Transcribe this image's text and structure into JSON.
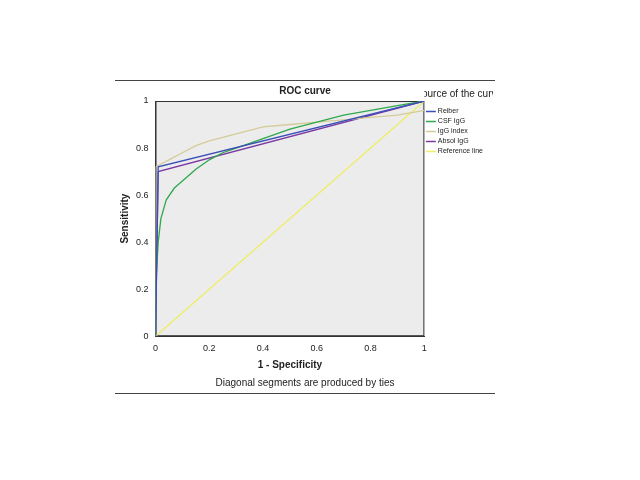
{
  "chart_data": {
    "type": "line",
    "title": "ROC curve",
    "xlabel": "1 - Specificity",
    "ylabel": "Sensitivity",
    "annotation": "Diagonal segments are produced by ties",
    "legend": "right",
    "legend_title": "Source of the curve",
    "grid": false,
    "xlim": [
      0,
      1
    ],
    "ylim": [
      0,
      1
    ],
    "xticks": [
      0,
      0.2,
      0.4,
      0.6,
      0.8,
      1
    ],
    "yticks": [
      0,
      0.2,
      0.4,
      0.6,
      0.8,
      1
    ],
    "series": [
      {
        "name": "Reiber",
        "color": "#3b4fb8",
        "x": [
          0,
          0.01,
          1
        ],
        "values": [
          0,
          0.72,
          1
        ]
      },
      {
        "name": "CSF IgG",
        "color": "#2ea84c",
        "x": [
          0,
          0,
          0.005,
          0.01,
          0.02,
          0.04,
          0.07,
          0.1,
          0.15,
          0.2,
          0.25,
          0.3,
          0.4,
          0.5,
          0.6,
          0.7,
          0.8,
          0.9,
          1
        ],
        "values": [
          0,
          0.2,
          0.3,
          0.4,
          0.5,
          0.58,
          0.63,
          0.66,
          0.71,
          0.75,
          0.78,
          0.8,
          0.84,
          0.88,
          0.91,
          0.94,
          0.96,
          0.98,
          1
        ]
      },
      {
        "name": "IgG index",
        "color": "#d4cc98",
        "x": [
          0,
          0,
          0.05,
          0.1,
          0.15,
          0.2,
          0.3,
          0.4,
          0.5,
          0.6,
          0.7,
          0.8,
          0.9,
          1
        ],
        "values": [
          0,
          0.72,
          0.75,
          0.78,
          0.81,
          0.83,
          0.86,
          0.89,
          0.9,
          0.91,
          0.92,
          0.93,
          0.94,
          0.96
        ]
      },
      {
        "name": "Absol IgG",
        "color": "#7b3aa3",
        "x": [
          0,
          0.01,
          1
        ],
        "values": [
          0,
          0.7,
          1
        ]
      },
      {
        "name": "Reference line",
        "color": "#eeee66",
        "x": [
          0,
          1
        ],
        "values": [
          0,
          1
        ]
      }
    ]
  }
}
